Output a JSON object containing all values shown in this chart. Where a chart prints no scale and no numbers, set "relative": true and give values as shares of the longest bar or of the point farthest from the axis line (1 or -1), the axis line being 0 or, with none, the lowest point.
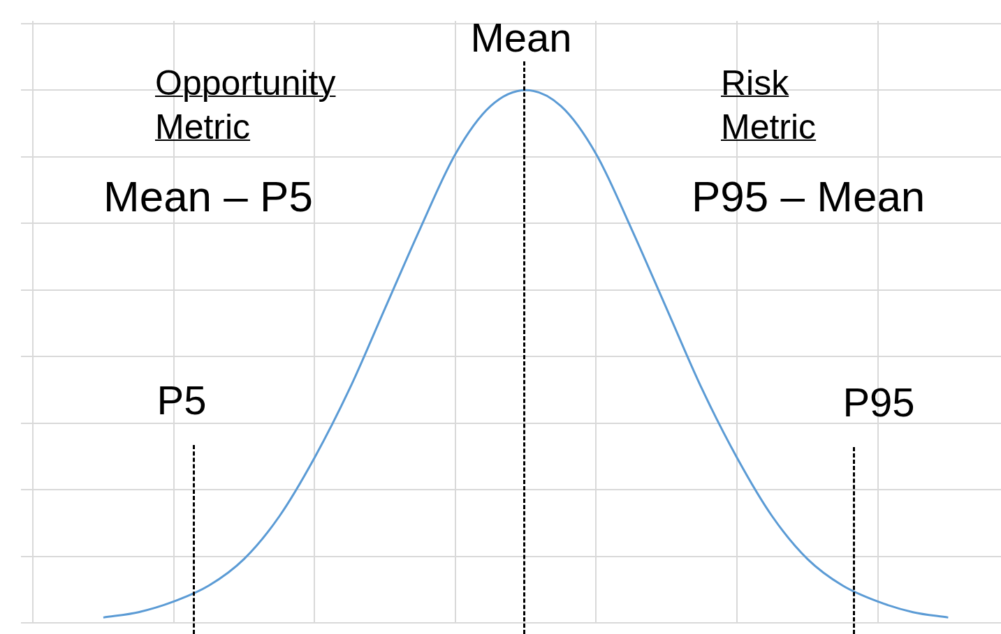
{
  "chart_data": {
    "type": "line",
    "relative": true,
    "grid": true,
    "legend": false,
    "categories": [
      null,
      null,
      null,
      null,
      null,
      null,
      null,
      null,
      null,
      null,
      null,
      null,
      null,
      null,
      null,
      null,
      null,
      null,
      null,
      null,
      null,
      null,
      null,
      null,
      null
    ],
    "series": [
      {
        "color": "#5b9bd5",
        "values": [
          0.01,
          0.02,
          0.04,
          0.07,
          0.12,
          0.2,
          0.31,
          0.44,
          0.59,
          0.74,
          0.88,
          0.97,
          1,
          0.97,
          0.88,
          0.74,
          0.59,
          0.44,
          0.31,
          0.2,
          0.12,
          0.07,
          0.04,
          0.02,
          0.01
        ]
      }
    ],
    "annotations": [
      "Opportunity Metric",
      "Mean – P5",
      "Risk Metric",
      "P95 – Mean",
      "Mean",
      "P5",
      "P95"
    ]
  }
}
